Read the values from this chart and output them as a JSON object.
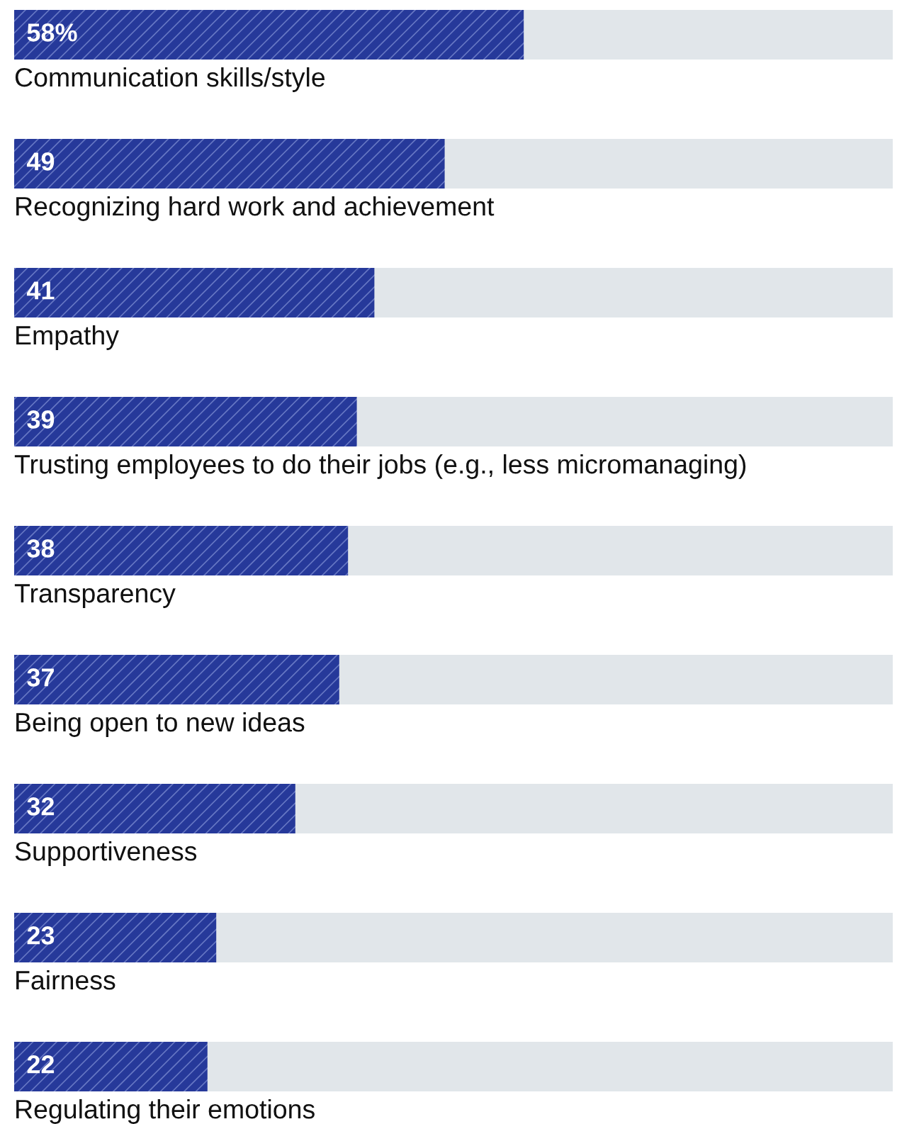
{
  "chart_data": {
    "type": "bar",
    "orientation": "horizontal",
    "categories": [
      "Communication skills/style",
      "Recognizing hard work and achievement",
      "Empathy",
      "Trusting employees to do their jobs (e.g., less micromanaging)",
      "Transparency",
      "Being open to new ideas",
      "Supportiveness",
      "Fairness",
      "Regulating their emotions"
    ],
    "values": [
      58,
      49,
      41,
      39,
      38,
      37,
      32,
      23,
      22
    ],
    "value_labels": [
      "58%",
      "49",
      "41",
      "39",
      "38",
      "37",
      "32",
      "23",
      "22"
    ],
    "color": "#26399a",
    "xlim": [
      0,
      100
    ]
  }
}
